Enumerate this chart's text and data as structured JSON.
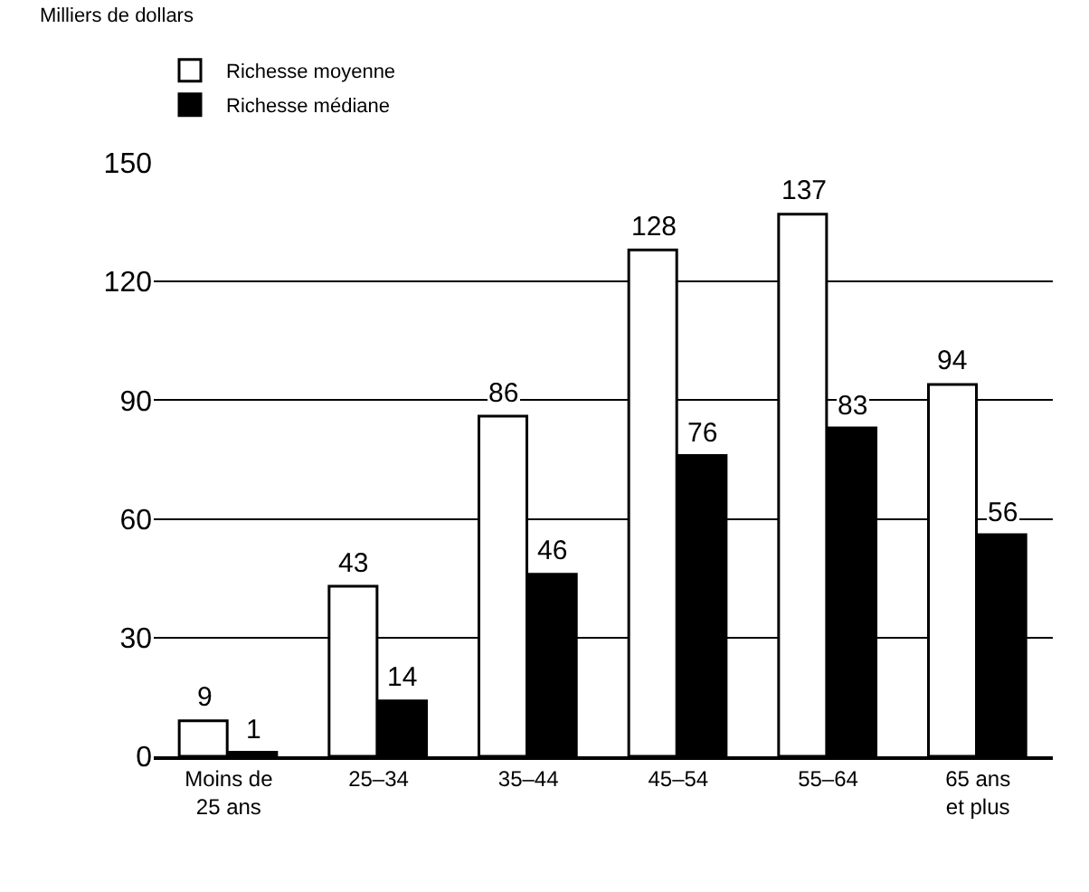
{
  "chart_data": {
    "type": "bar",
    "annotations": [
      "Milliers de dollars"
    ],
    "categories": [
      "Moins de 25 ans",
      "25–34",
      "35–44",
      "45–54",
      "55–64",
      "65 ans et plus"
    ],
    "series": [
      {
        "name": "Richesse moyenne",
        "color": "#ffffff",
        "values": [
          9,
          43,
          86,
          128,
          137,
          94
        ]
      },
      {
        "name": "Richesse médiane",
        "color": "#000000",
        "values": [
          1,
          14,
          46,
          76,
          83,
          56
        ]
      }
    ],
    "ylim": [
      0,
      150
    ],
    "yticks": [
      0,
      30,
      60,
      90,
      120,
      150
    ],
    "grid": "y",
    "legend": "top left",
    "data_labels": true
  }
}
